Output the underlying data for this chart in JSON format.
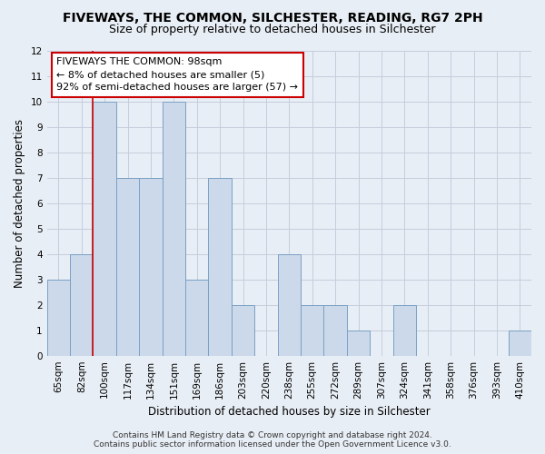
{
  "title": "FIVEWAYS, THE COMMON, SILCHESTER, READING, RG7 2PH",
  "subtitle": "Size of property relative to detached houses in Silchester",
  "xlabel": "Distribution of detached houses by size in Silchester",
  "ylabel": "Number of detached properties",
  "bar_labels": [
    "65sqm",
    "82sqm",
    "100sqm",
    "117sqm",
    "134sqm",
    "151sqm",
    "169sqm",
    "186sqm",
    "203sqm",
    "220sqm",
    "238sqm",
    "255sqm",
    "272sqm",
    "289sqm",
    "307sqm",
    "324sqm",
    "341sqm",
    "358sqm",
    "376sqm",
    "393sqm",
    "410sqm"
  ],
  "bar_values": [
    3,
    4,
    10,
    7,
    7,
    10,
    3,
    7,
    2,
    0,
    4,
    2,
    2,
    1,
    0,
    2,
    0,
    0,
    0,
    0,
    1
  ],
  "highlight_index": 2,
  "bar_color": "#ccd9ea",
  "bar_edge_color": "#7aa0c4",
  "highlight_line_color": "#cc0000",
  "annotation_box_color": "#ffffff",
  "annotation_box_edge": "#cc0000",
  "annotation_text_line1": "FIVEWAYS THE COMMON: 98sqm",
  "annotation_text_line2": "← 8% of detached houses are smaller (5)",
  "annotation_text_line3": "92% of semi-detached houses are larger (57) →",
  "bg_color": "#e8eef5",
  "ylim": [
    0,
    12
  ],
  "yticks": [
    0,
    1,
    2,
    3,
    4,
    5,
    6,
    7,
    8,
    9,
    10,
    11,
    12
  ],
  "grid_color": "#c5cedd",
  "footer_line1": "Contains HM Land Registry data © Crown copyright and database right 2024.",
  "footer_line2": "Contains public sector information licensed under the Open Government Licence v3.0.",
  "title_fontsize": 10,
  "subtitle_fontsize": 9,
  "axis_label_fontsize": 8.5,
  "tick_fontsize": 7.5,
  "annotation_fontsize": 8,
  "footer_fontsize": 6.5
}
